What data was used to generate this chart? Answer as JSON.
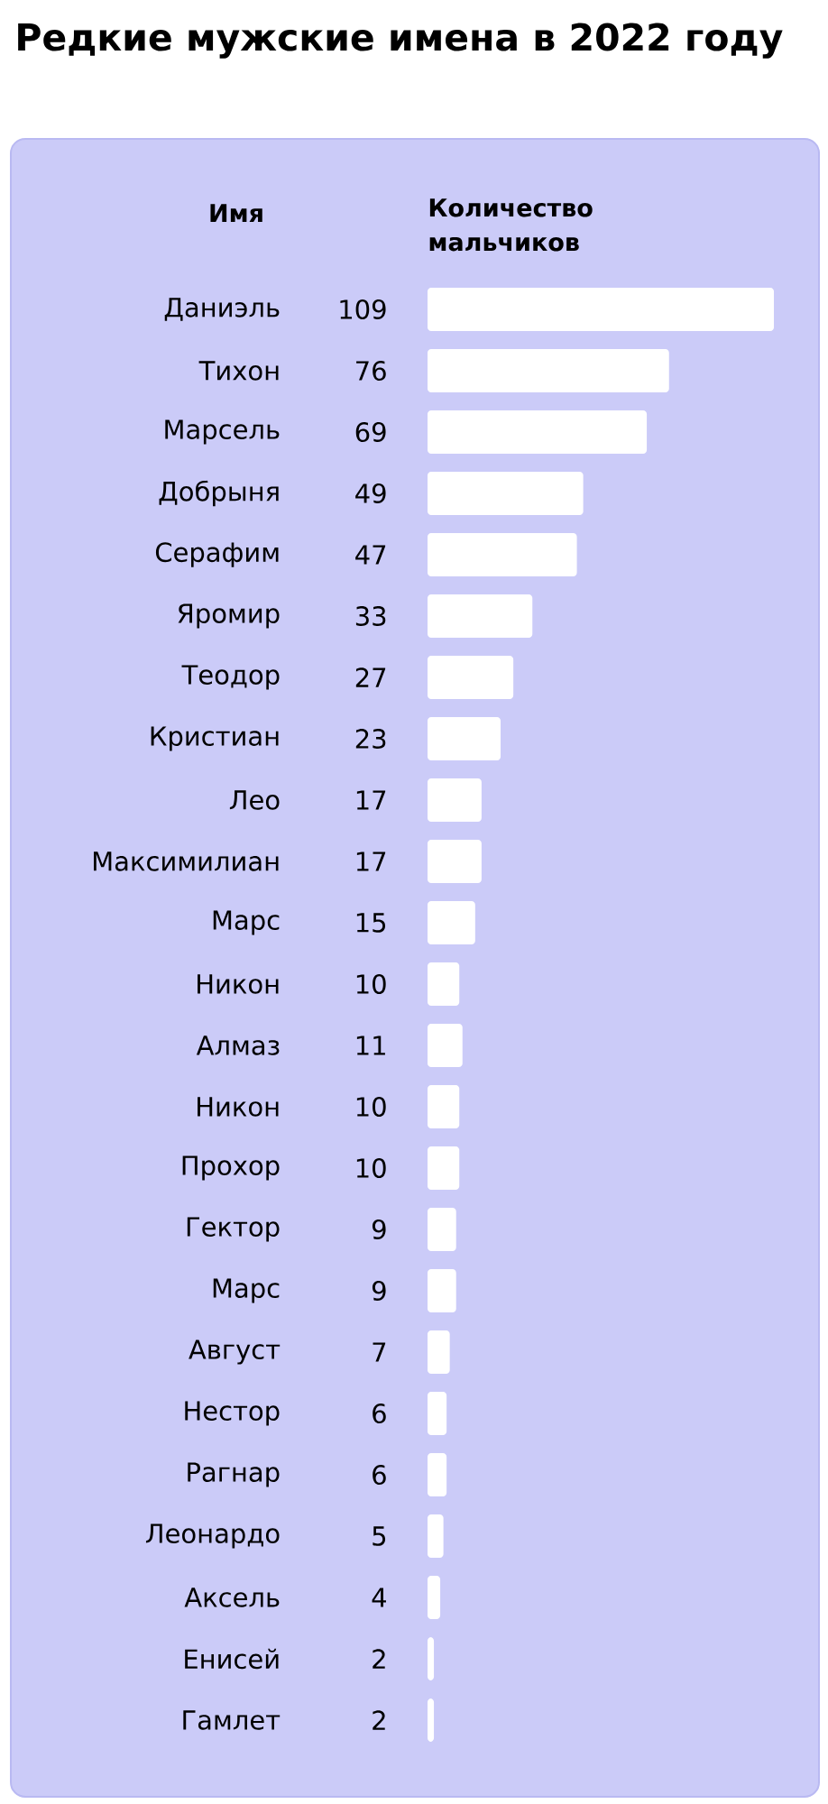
{
  "chart_data": {
    "type": "bar",
    "orientation": "horizontal",
    "title": "Редкие мужские имена в 2022 году",
    "ylabel": "Имя",
    "xlabel": "Количество мальчиков",
    "categories": [
      "Даниэль",
      "Тихон",
      "Марсель",
      "Добрыня",
      "Серафим",
      "Яромир",
      "Теодор",
      "Кристиан",
      "Лео",
      "Максимилиан",
      "Марс",
      "Никон",
      "Алмаз",
      "Никон",
      "Прохор",
      "Гектор",
      "Марс",
      "Август",
      "Нестор",
      "Рагнар",
      "Леонардо",
      "Аксель",
      "Енисей",
      "Гамлет"
    ],
    "values": [
      109,
      76,
      69,
      49,
      47,
      33,
      27,
      23,
      17,
      17,
      15,
      10,
      11,
      10,
      10,
      9,
      9,
      7,
      6,
      6,
      5,
      4,
      2,
      2
    ],
    "color": "#ffffff",
    "xlim": [
      0,
      109
    ],
    "data_labels": true,
    "tick_labels": "y"
  }
}
